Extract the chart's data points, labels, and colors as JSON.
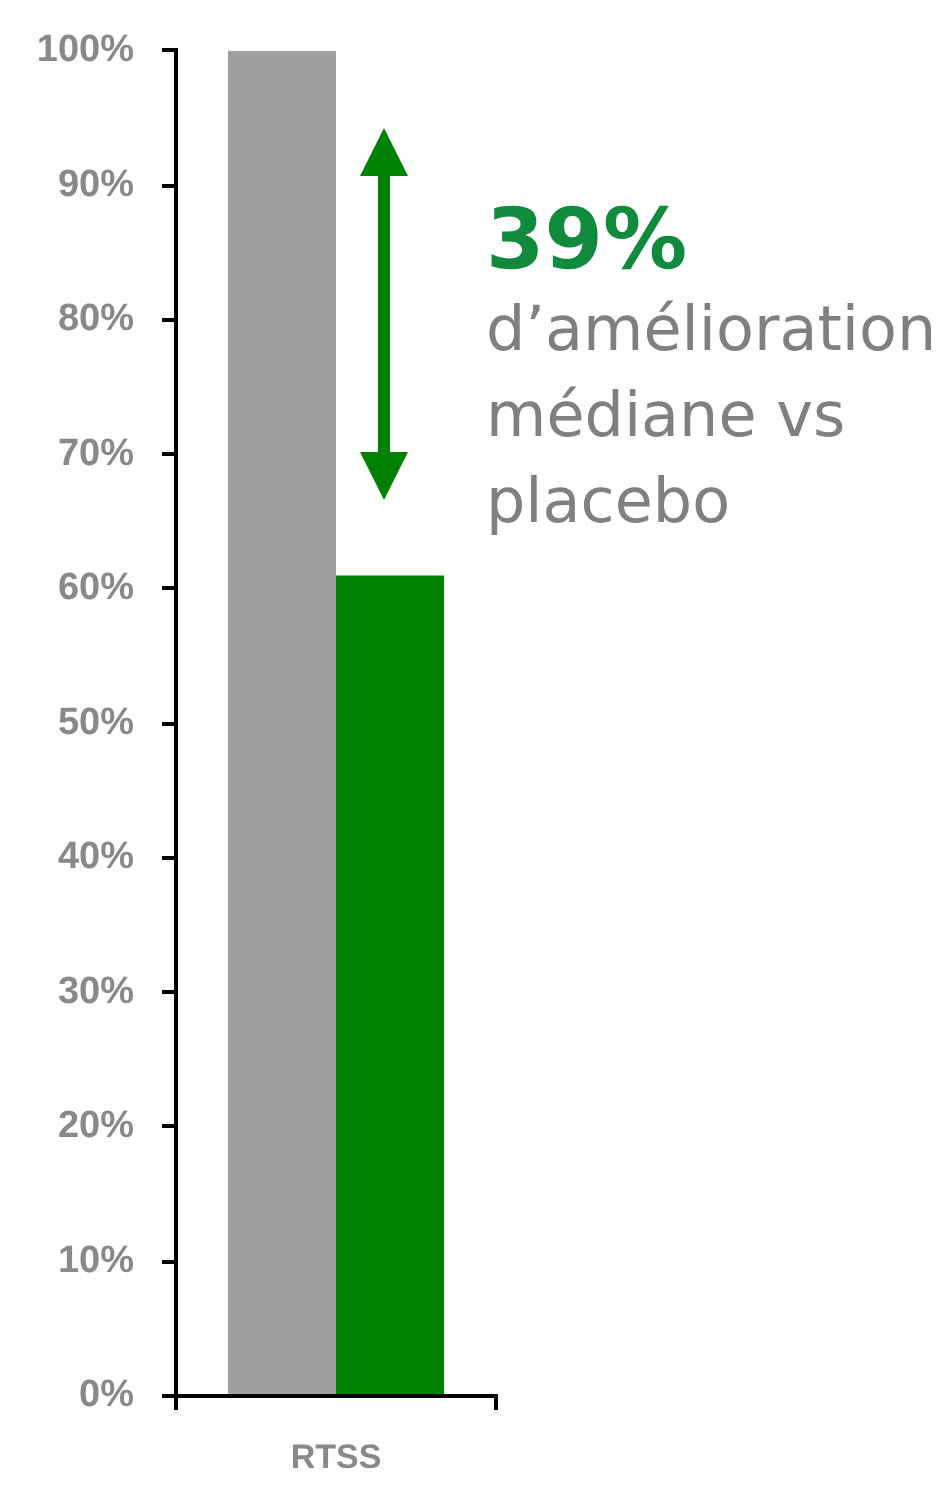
{
  "chart_data": {
    "type": "bar",
    "categories": [
      "RTSS"
    ],
    "series": [
      {
        "color": "#9f9f9f",
        "values": [
          100
        ]
      },
      {
        "color": "#008000",
        "values": [
          61
        ]
      }
    ],
    "ylim": [
      0,
      100
    ],
    "yticks": [
      {
        "value": 0,
        "label": "0%"
      },
      {
        "value": 10,
        "label": "10%"
      },
      {
        "value": 20,
        "label": "20%"
      },
      {
        "value": 30,
        "label": "30%"
      },
      {
        "value": 40,
        "label": "40%"
      },
      {
        "value": 50,
        "label": "50%"
      },
      {
        "value": 60,
        "label": "60%"
      },
      {
        "value": 70,
        "label": "70%"
      },
      {
        "value": 80,
        "label": "80%"
      },
      {
        "value": 90,
        "label": "90%"
      },
      {
        "value": 100,
        "label": "100%"
      }
    ],
    "annotations": [
      "39%",
      "d’amélioration médiane vs placebo"
    ]
  }
}
